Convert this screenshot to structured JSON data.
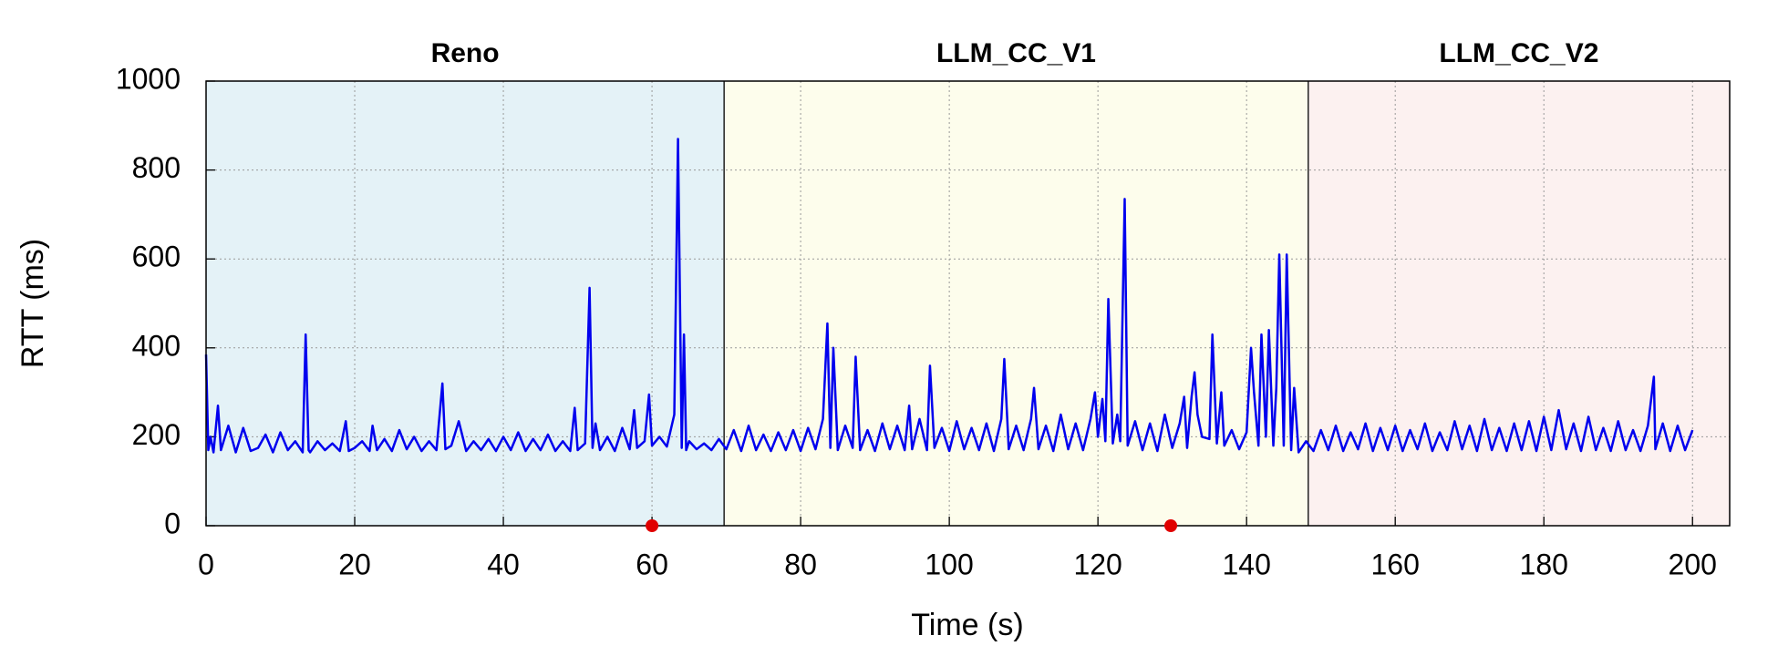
{
  "chart_data": {
    "type": "line",
    "xlabel": "Time (s)",
    "ylabel": "RTT (ms)",
    "color": "#0000ee",
    "xlim": [
      0,
      205
    ],
    "ylim": [
      0,
      1000
    ],
    "xticks": [
      0,
      20,
      40,
      60,
      80,
      100,
      120,
      140,
      160,
      180,
      200
    ],
    "yticks": [
      0,
      200,
      400,
      600,
      800,
      1000
    ],
    "grid": true,
    "regions": [
      {
        "name": "Reno",
        "start": 0,
        "end": 69.7,
        "color": "#e4f2f7"
      },
      {
        "name": "LLM_CC_V1",
        "start": 69.7,
        "end": 148.3,
        "color": "#fdfdec"
      },
      {
        "name": "LLM_CC_V2",
        "start": 148.3,
        "end": 205,
        "color": "#fcf1f0"
      }
    ],
    "markers": {
      "x": [
        60,
        129.8
      ],
      "y": [
        0,
        0
      ],
      "color": "#e00000"
    },
    "x": [
      0,
      0.3,
      0.6,
      1,
      1.6,
      2,
      3,
      4,
      5,
      6,
      7,
      8,
      9,
      10,
      11,
      12,
      13,
      13.4,
      13.8,
      14,
      15,
      16,
      17,
      18,
      18.8,
      19.2,
      20,
      21,
      22,
      22.4,
      23,
      24,
      25,
      26,
      27,
      28,
      29,
      30,
      31,
      31.8,
      32.2,
      33,
      34,
      35,
      36,
      37,
      38,
      39,
      40,
      41,
      42,
      43,
      44,
      45,
      46,
      47,
      48,
      49,
      49.6,
      50,
      51,
      51.6,
      52,
      52.4,
      53,
      54,
      55,
      56,
      57,
      57.6,
      58,
      59,
      59.6,
      60,
      61,
      62,
      63,
      63.5,
      64,
      64.3,
      64.6,
      65,
      66,
      67,
      68,
      69,
      70,
      71,
      72,
      73,
      74,
      75,
      76,
      77,
      78,
      79,
      80,
      81,
      82,
      83,
      83.6,
      84,
      84.4,
      85,
      86,
      87,
      87.4,
      88,
      89,
      90,
      91,
      92,
      93,
      94,
      94.6,
      95,
      96,
      97,
      97.4,
      98,
      99,
      100,
      101,
      102,
      103,
      104,
      105,
      106,
      107,
      107.4,
      108,
      109,
      110,
      111,
      111.4,
      112,
      113,
      114,
      115,
      116,
      117,
      118,
      119,
      119.6,
      120,
      120.6,
      121,
      121.4,
      122,
      122.6,
      123,
      123.6,
      124,
      125,
      126,
      127,
      128,
      129,
      130,
      131,
      131.6,
      132,
      132.6,
      133,
      133.4,
      134,
      135,
      135.4,
      136,
      136.6,
      137,
      138,
      139,
      140,
      140.6,
      141,
      141.6,
      142,
      142.6,
      143,
      143.6,
      144,
      144.4,
      145,
      145.4,
      146,
      146.4,
      147,
      148,
      149,
      150,
      151,
      152,
      153,
      154,
      155,
      156,
      157,
      158,
      159,
      160,
      161,
      162,
      163,
      164,
      165,
      166,
      167,
      168,
      169,
      170,
      171,
      172,
      173,
      174,
      175,
      176,
      177,
      178,
      179,
      180,
      181,
      182,
      183,
      184,
      185,
      186,
      187,
      188,
      189,
      190,
      191,
      192,
      193,
      194,
      194.8,
      195,
      196,
      197,
      198,
      199,
      200
    ],
    "values": [
      385,
      170,
      200,
      165,
      270,
      170,
      225,
      165,
      220,
      168,
      175,
      205,
      165,
      210,
      170,
      190,
      165,
      430,
      170,
      165,
      190,
      170,
      185,
      168,
      235,
      168,
      175,
      190,
      168,
      225,
      170,
      195,
      168,
      215,
      172,
      200,
      168,
      190,
      170,
      320,
      172,
      180,
      235,
      168,
      190,
      170,
      195,
      168,
      200,
      170,
      210,
      168,
      195,
      170,
      205,
      168,
      190,
      168,
      265,
      170,
      185,
      535,
      175,
      230,
      170,
      200,
      168,
      220,
      172,
      260,
      175,
      190,
      295,
      180,
      200,
      178,
      250,
      870,
      175,
      430,
      170,
      190,
      172,
      185,
      170,
      195,
      172,
      215,
      168,
      225,
      170,
      205,
      168,
      210,
      170,
      215,
      168,
      220,
      172,
      240,
      455,
      175,
      400,
      170,
      225,
      175,
      380,
      170,
      215,
      168,
      230,
      172,
      225,
      170,
      270,
      172,
      240,
      170,
      360,
      175,
      220,
      168,
      235,
      172,
      220,
      170,
      230,
      168,
      240,
      375,
      172,
      225,
      170,
      240,
      310,
      172,
      225,
      168,
      250,
      172,
      230,
      170,
      240,
      300,
      200,
      285,
      190,
      510,
      185,
      250,
      190,
      735,
      180,
      235,
      170,
      230,
      168,
      250,
      175,
      230,
      290,
      175,
      290,
      345,
      250,
      200,
      195,
      430,
      185,
      300,
      180,
      215,
      172,
      210,
      400,
      300,
      180,
      430,
      200,
      440,
      180,
      310,
      610,
      180,
      610,
      170,
      310,
      165,
      190,
      168,
      215,
      170,
      225,
      168,
      210,
      172,
      230,
      168,
      220,
      170,
      225,
      168,
      215,
      172,
      230,
      168,
      210,
      170,
      235,
      172,
      225,
      168,
      240,
      170,
      220,
      168,
      230,
      170,
      235,
      168,
      245,
      170,
      260,
      172,
      230,
      168,
      245,
      170,
      220,
      168,
      235,
      170,
      215,
      168,
      225,
      335,
      172,
      230,
      168,
      225,
      170,
      215
    ]
  }
}
